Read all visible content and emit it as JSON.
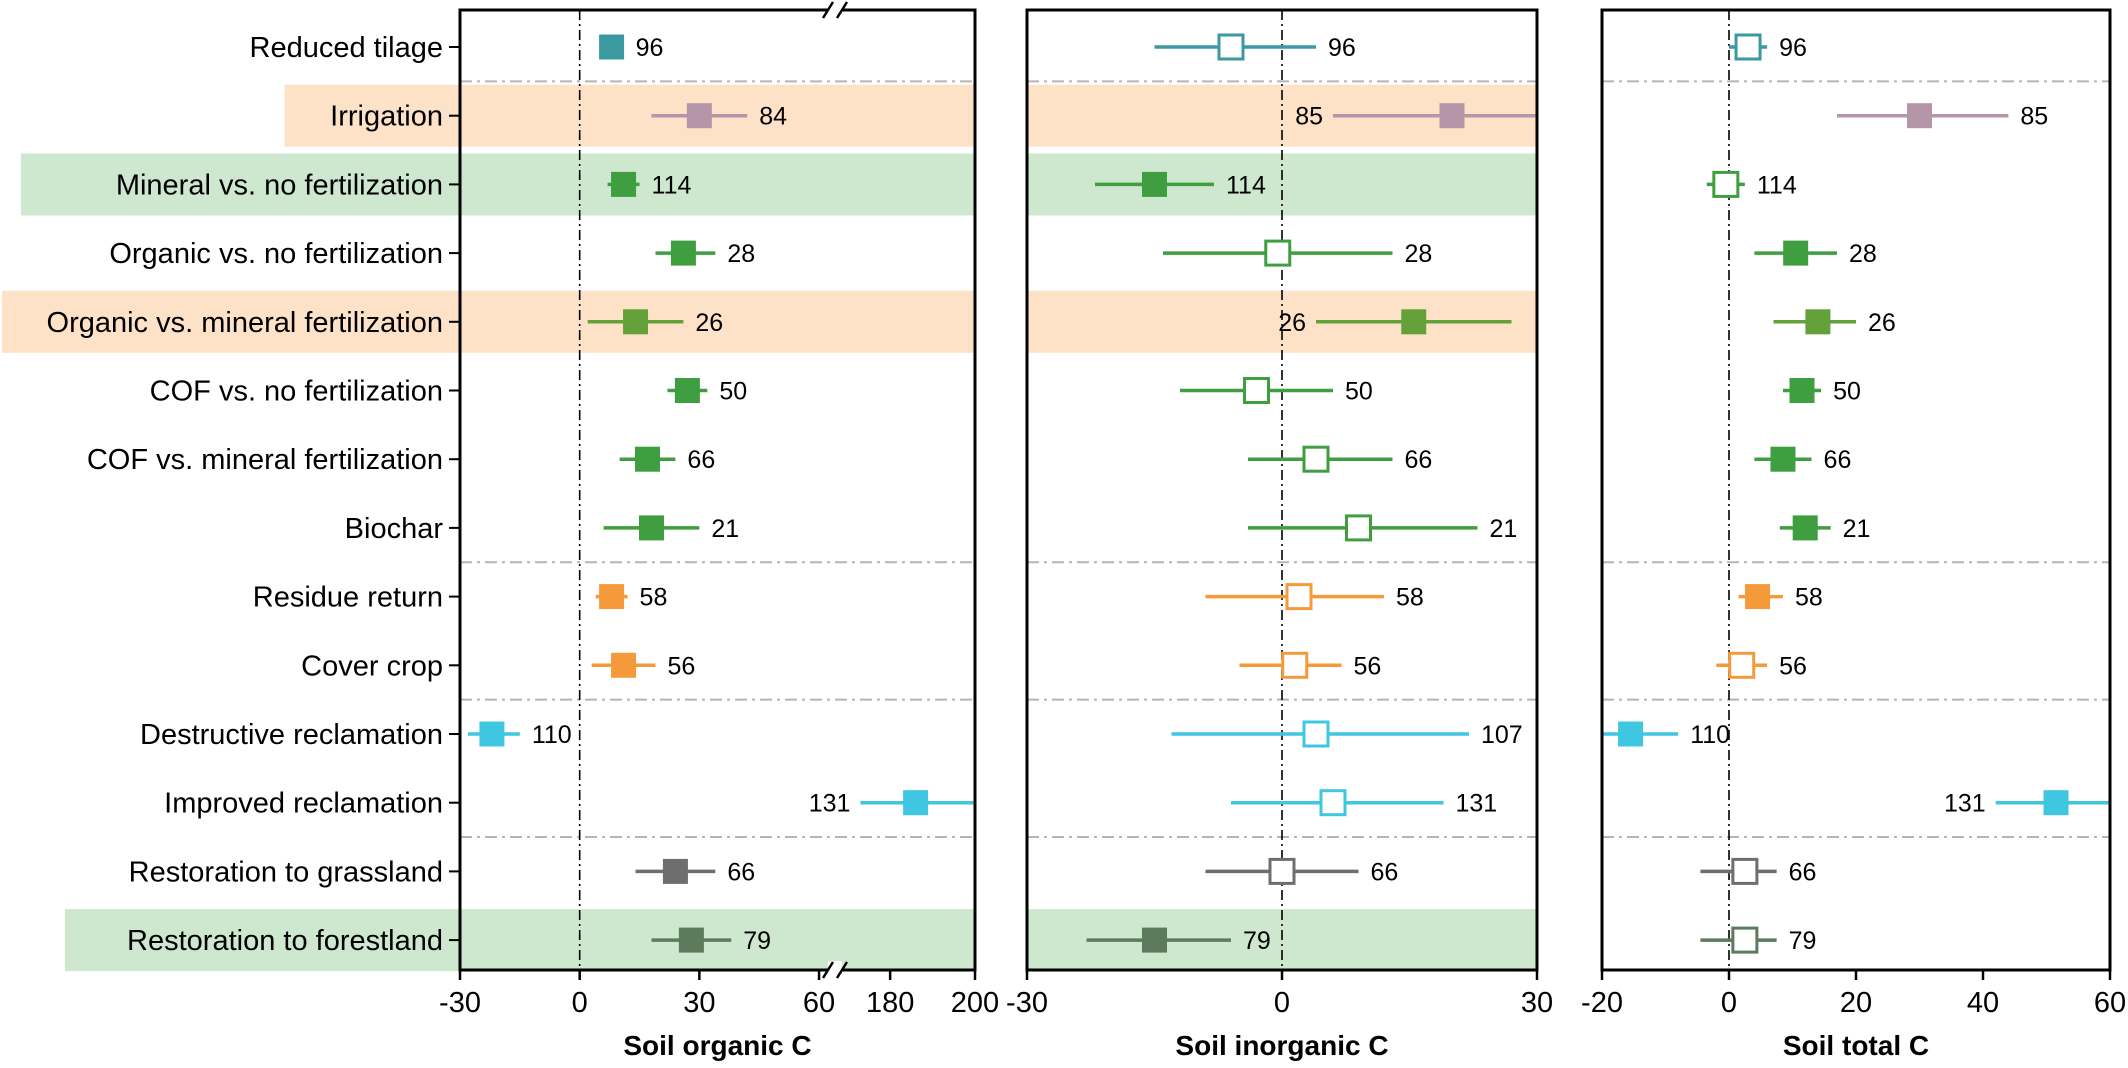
{
  "chart_data": {
    "type": "forest",
    "categories": [
      "Reduced tilage",
      "Irrigation",
      "Mineral vs. no fertilization",
      "Organic vs. no fertilization",
      "Organic vs. mineral fertilization",
      "COF vs. no fertilization",
      "COF vs. mineral fertilization",
      "Biochar",
      "Residue return",
      "Cover crop",
      "Destructive reclamation",
      "Improved reclamation",
      "Restoration to grassland",
      "Restoration to forestland"
    ],
    "row_colors": [
      "#3a9aa0",
      "#b595a8",
      "#3f9e3f",
      "#3f9e3f",
      "#64a13a",
      "#3f9e3f",
      "#3f9e3f",
      "#3f9e3f",
      "#f59a3a",
      "#f59a3a",
      "#3fc6e0",
      "#3fc6e0",
      "#6e6e6e",
      "#5c7a5c"
    ],
    "row_highlights": [
      {
        "row": 1,
        "color": "#fde2c8"
      },
      {
        "row": 2,
        "color": "#cde8cf"
      },
      {
        "row": 4,
        "color": "#fde2c8"
      },
      {
        "row": 13,
        "color": "#cde8cf"
      }
    ],
    "group_dividers_after_rows": [
      0,
      7,
      9,
      11
    ],
    "panels": [
      {
        "xlabel": "Soil organic C",
        "xlim": [
          -30,
          200
        ],
        "axis_break": [
          64,
          167
        ],
        "tick_labels": [
          "-30",
          "0",
          "30",
          "60",
          "180",
          "200"
        ],
        "tick_values": [
          -30,
          0,
          30,
          60,
          180,
          200
        ],
        "mean": [
          8,
          30,
          11,
          26,
          14,
          27,
          17,
          18,
          8,
          11,
          -22,
          186,
          24,
          28
        ],
        "lower": [
          5,
          18,
          7,
          19,
          2,
          22,
          10,
          6,
          4,
          3,
          -28,
          173,
          14,
          18
        ],
        "upper": [
          11,
          42,
          15,
          34,
          26,
          32,
          24,
          30,
          12,
          19,
          -15,
          200,
          34,
          38
        ],
        "filled": [
          true,
          true,
          true,
          true,
          true,
          true,
          true,
          true,
          true,
          true,
          true,
          true,
          true,
          true
        ],
        "n": [
          "96",
          "84",
          "114",
          "28",
          "26",
          "50",
          "66",
          "21",
          "58",
          "56",
          "110",
          "131",
          "66",
          "79"
        ],
        "n_side": [
          "right",
          "right",
          "right",
          "right",
          "right",
          "right",
          "right",
          "right",
          "right",
          "right",
          "right",
          "left",
          "right",
          "right"
        ]
      },
      {
        "xlabel": "Soil inorganic C",
        "xlim": [
          -30,
          30
        ],
        "tick_labels": [
          "-30",
          "0",
          "30"
        ],
        "tick_values": [
          -30,
          0,
          30
        ],
        "mean": [
          -6,
          20,
          -15,
          -0.5,
          15.5,
          -3,
          4,
          9,
          2,
          1.5,
          4,
          6,
          0,
          -15
        ],
        "lower": [
          -15,
          6,
          -22,
          -14,
          4,
          -12,
          -4,
          -4,
          -9,
          -5,
          -13,
          -6,
          -9,
          -23
        ],
        "upper": [
          4,
          30,
          -8,
          13,
          27,
          6,
          13,
          23,
          12,
          7,
          22,
          19,
          9,
          -6
        ],
        "filled": [
          false,
          true,
          true,
          false,
          true,
          false,
          false,
          false,
          false,
          false,
          false,
          false,
          false,
          true
        ],
        "n": [
          "96",
          "85",
          "114",
          "28",
          "26",
          "50",
          "66",
          "21",
          "58",
          "56",
          "107",
          "131",
          "66",
          "79"
        ],
        "n_side": [
          "right",
          "left",
          "right",
          "right",
          "left",
          "right",
          "right",
          "right",
          "right",
          "right",
          "right",
          "right",
          "right",
          "right"
        ]
      },
      {
        "xlabel": "Soil total C",
        "xlim": [
          -20,
          60
        ],
        "tick_labels": [
          "-20",
          "0",
          "20",
          "40",
          "60"
        ],
        "tick_values": [
          -20,
          0,
          20,
          40,
          60
        ],
        "mean": [
          3,
          30,
          -0.5,
          10.5,
          14,
          11.5,
          8.5,
          12,
          4.5,
          2,
          -15.5,
          51.5,
          2.5,
          2.5
        ],
        "lower": [
          0,
          17,
          -3.5,
          4,
          7,
          8.5,
          4,
          8,
          1.5,
          -2,
          -20,
          42,
          -4.5,
          -4.5
        ],
        "upper": [
          6,
          44,
          2.5,
          17,
          20,
          14.5,
          13,
          16,
          8.5,
          6,
          -8,
          60,
          7.5,
          7.5
        ],
        "filled": [
          false,
          true,
          false,
          true,
          true,
          true,
          true,
          true,
          true,
          false,
          true,
          true,
          false,
          false
        ],
        "n": [
          "96",
          "85",
          "114",
          "28",
          "26",
          "50",
          "66",
          "21",
          "58",
          "56",
          "110",
          "131",
          "66",
          "79"
        ],
        "n_side": [
          "right",
          "right",
          "right",
          "right",
          "right",
          "right",
          "right",
          "right",
          "right",
          "right",
          "right",
          "left",
          "right",
          "right"
        ]
      }
    ]
  }
}
